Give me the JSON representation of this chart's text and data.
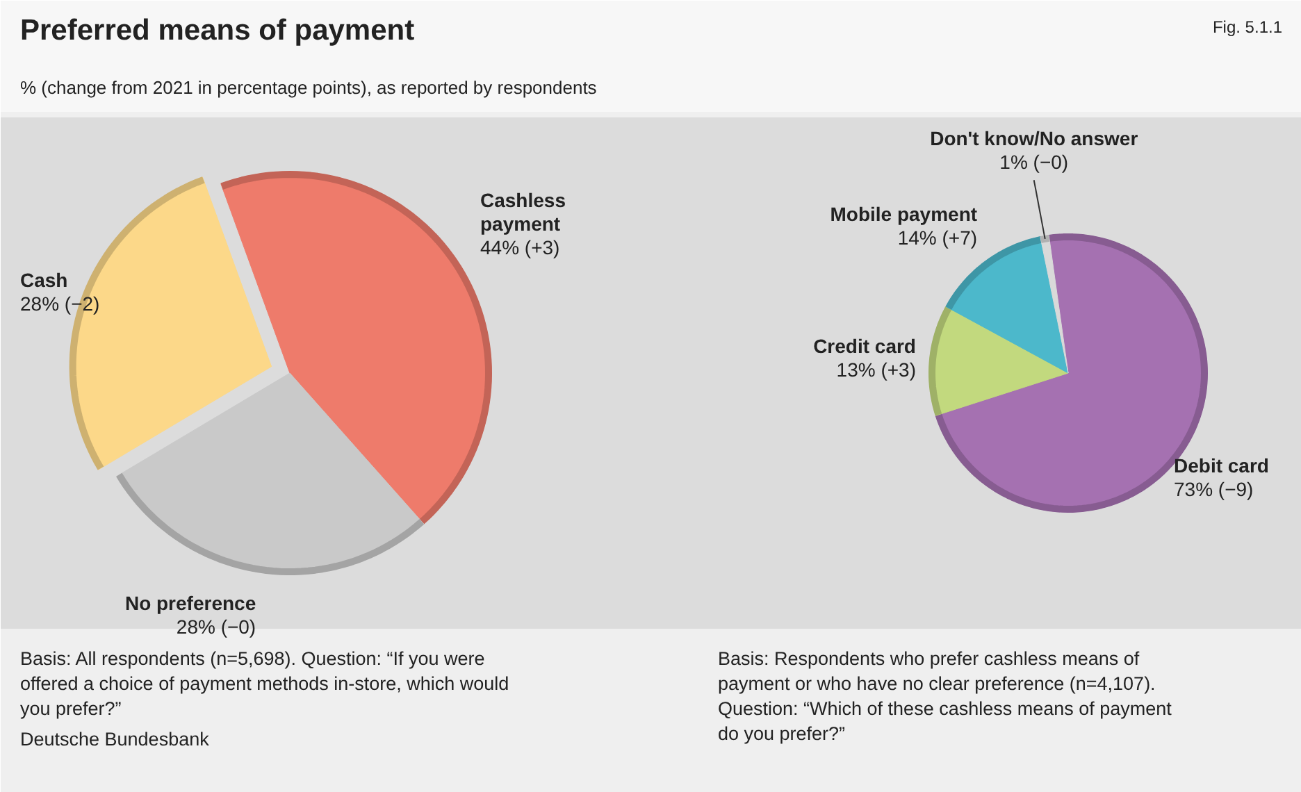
{
  "chart_data": [
    {
      "type": "pie",
      "title": "Preferred means of payment",
      "subtitle": "% (change from 2021 in percentage points), as reported by respondents",
      "categories": [
        "Cashless payment",
        "No preference",
        "Cash"
      ],
      "values": [
        44,
        28,
        28
      ],
      "value_labels": [
        "44% (+3)",
        "28% (−0)",
        "28% (−2)"
      ],
      "colors": [
        "#ee7b6b",
        "#c9c9c9",
        "#fcd889"
      ],
      "annotations": [
        "Fig. 5.1.1",
        "Basis: All respondents (n=5,698). Question: “If you were offered a choice of payment methods in-store, which would you prefer?”",
        "Deutsche Bundesbank"
      ]
    },
    {
      "type": "pie",
      "categories": [
        "Debit card",
        "Credit card",
        "Mobile payment",
        "Don't know/No answer"
      ],
      "values": [
        73,
        13,
        14,
        1
      ],
      "value_labels": [
        "73% (−9)",
        "13% (+3)",
        "14% (+7)",
        "1% (−0)"
      ],
      "colors": [
        "#a571b1",
        "#c2d97e",
        "#4cb8cb",
        "#d9d9d9"
      ],
      "annotations": [
        "Basis: Respondents who prefer cashless means of payment or who have no clear preference (n=4,107). Question: “Which of these cashless means of payment do you prefer?”"
      ]
    }
  ]
}
